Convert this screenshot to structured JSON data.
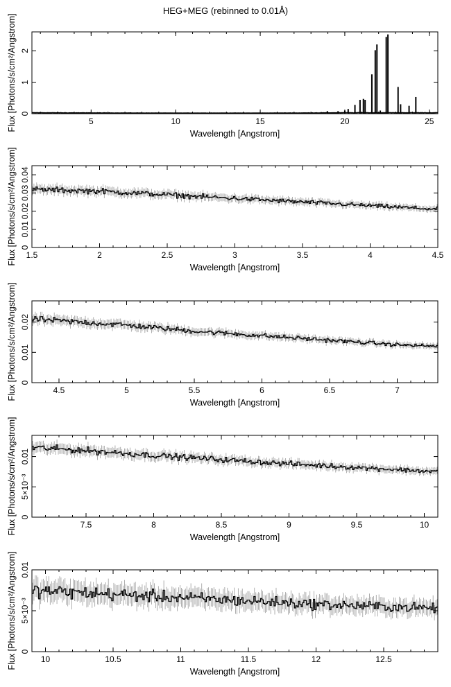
{
  "title": "HEG+MEG (rebinned to 0.01Å)",
  "chart_data": [
    {
      "type": "line",
      "title": "HEG+MEG (rebinned to 0.01Å)",
      "xlabel": "Wavelength [Angstrom]",
      "ylabel": "Flux [Photons/s/cm²/Angstrom]",
      "xlim": [
        1.5,
        25.5
      ],
      "ylim": [
        0,
        2.6
      ],
      "xticks": [
        5,
        10,
        15,
        20,
        25
      ],
      "xtick_labels": [
        "5",
        "10",
        "15",
        "20",
        "25"
      ],
      "yticks": [
        0,
        1,
        2
      ],
      "ytick_labels": [
        "0",
        "1",
        "2"
      ],
      "continuum": {
        "x": [
          1.5,
          5,
          10,
          15,
          18,
          20,
          25.5
        ],
        "y": [
          0.03,
          0.025,
          0.02,
          0.02,
          0.025,
          0.03,
          0.03
        ]
      },
      "lines": {
        "x": [
          18.6,
          18.97,
          19.6,
          20.0,
          20.2,
          20.6,
          20.9,
          21.1,
          21.2,
          21.6,
          21.8,
          21.9,
          22.1,
          22.45,
          22.55,
          23.15,
          23.3,
          23.8,
          24.2
        ],
        "y": [
          0.05,
          0.08,
          0.08,
          0.1,
          0.15,
          0.28,
          0.44,
          0.47,
          0.44,
          1.25,
          2.02,
          2.2,
          0.1,
          2.44,
          2.52,
          0.85,
          0.3,
          0.25,
          0.53
        ]
      }
    },
    {
      "type": "line",
      "xlabel": "Wavelength [Angstrom]",
      "ylabel": "Flux [Photons/s/cm²/Angstrom]",
      "xlim": [
        1.5,
        4.5
      ],
      "ylim": [
        0,
        0.045
      ],
      "xticks": [
        1.5,
        2,
        2.5,
        3,
        3.5,
        4,
        4.5
      ],
      "xtick_labels": [
        "1.5",
        "2",
        "2.5",
        "3",
        "3.5",
        "4",
        "4.5"
      ],
      "yticks": [
        0,
        0.01,
        0.02,
        0.03,
        0.04
      ],
      "ytick_labels": [
        "0",
        "0.01",
        "0.02",
        "0.03",
        "0.04"
      ],
      "trend": {
        "x": [
          1.5,
          2.0,
          2.5,
          3.0,
          3.5,
          4.0,
          4.5
        ],
        "y": [
          0.032,
          0.031,
          0.029,
          0.027,
          0.025,
          0.023,
          0.021
        ]
      }
    },
    {
      "type": "line",
      "xlabel": "Wavelength [Angstrom]",
      "ylabel": "Flux [Photons/s/cm²/Angstrom]",
      "xlim": [
        4.3,
        7.3
      ],
      "ylim": [
        0,
        0.027
      ],
      "xticks": [
        4.5,
        5,
        5.5,
        6,
        6.5,
        7
      ],
      "xtick_labels": [
        "4.5",
        "5",
        "5.5",
        "6",
        "6.5",
        "7"
      ],
      "yticks": [
        0,
        0.01,
        0.02
      ],
      "ytick_labels": [
        "0",
        "0.01",
        "0.02"
      ],
      "trend": {
        "x": [
          4.3,
          5.0,
          5.5,
          6.0,
          6.5,
          7.0,
          7.3
        ],
        "y": [
          0.021,
          0.019,
          0.017,
          0.0155,
          0.014,
          0.0125,
          0.012
        ]
      }
    },
    {
      "type": "line",
      "xlabel": "Wavelength [Angstrom]",
      "ylabel": "Flux [Photons/s/cm²/Angstrom]",
      "xlim": [
        7.1,
        10.1
      ],
      "ylim": [
        0,
        0.0135
      ],
      "xticks": [
        7.5,
        8,
        8.5,
        9,
        9.5,
        10
      ],
      "xtick_labels": [
        "7.5",
        "8",
        "8.5",
        "9",
        "9.5",
        "10"
      ],
      "yticks": [
        0,
        0.005,
        0.01
      ],
      "ytick_labels": [
        "0",
        "5×10⁻³",
        "0.01"
      ],
      "trend": {
        "x": [
          7.1,
          7.5,
          8.0,
          8.5,
          9.0,
          9.5,
          10.1
        ],
        "y": [
          0.0115,
          0.011,
          0.0102,
          0.0095,
          0.0088,
          0.0082,
          0.0075
        ]
      }
    },
    {
      "type": "line",
      "xlabel": "Wavelength [Angstrom]",
      "ylabel": "Flux [Photons/s/cm²/Angstrom]",
      "xlim": [
        9.9,
        12.9
      ],
      "ylim": [
        0,
        0.01
      ],
      "xticks": [
        10,
        10.5,
        11,
        11.5,
        12,
        12.5
      ],
      "xtick_labels": [
        "10",
        "10.5",
        "11",
        "11.5",
        "12",
        "12.5"
      ],
      "yticks": [
        0,
        0.005,
        0.01
      ],
      "ytick_labels": [
        "0",
        "5×10⁻³",
        "0.01"
      ],
      "trend": {
        "x": [
          9.9,
          10.5,
          11.0,
          11.5,
          12.0,
          12.5,
          12.9
        ],
        "y": [
          0.0075,
          0.007,
          0.0066,
          0.0062,
          0.0058,
          0.0055,
          0.0053
        ]
      }
    }
  ]
}
